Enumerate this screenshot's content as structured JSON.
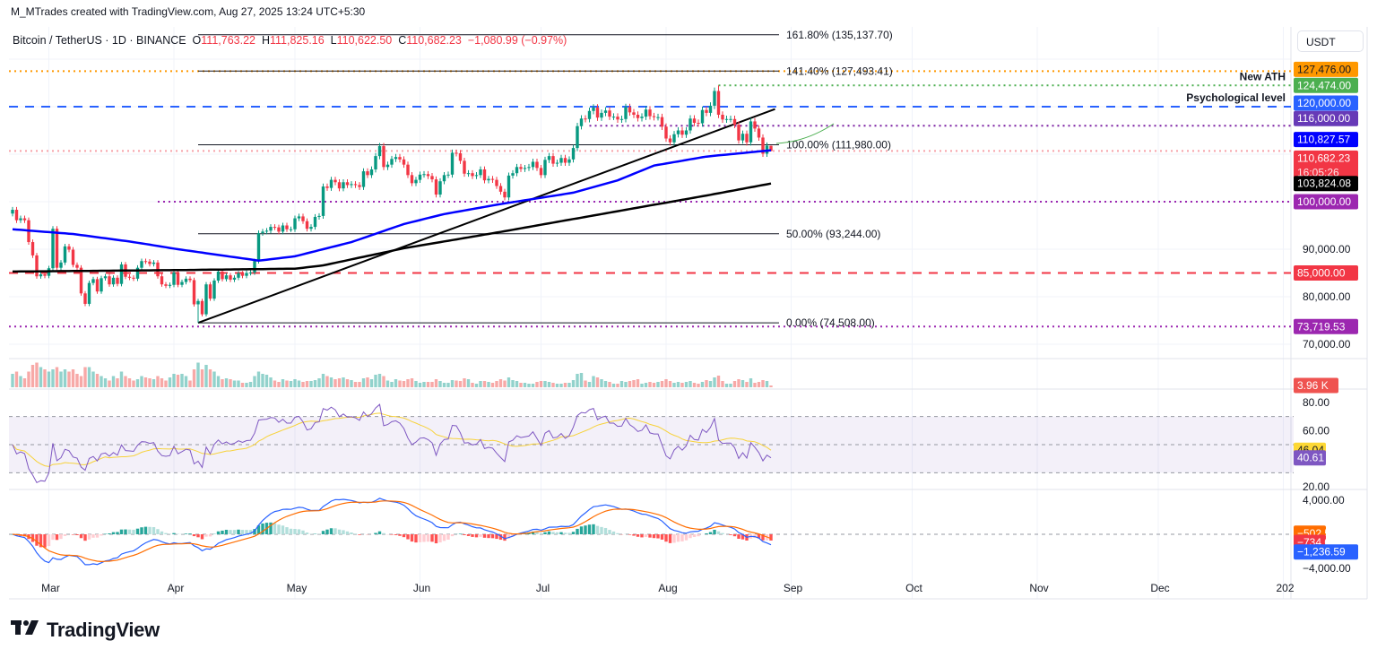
{
  "header": {
    "attribution": "M_MTrades created with TradingView.com, Aug 27, 2025 13:24 UTC+5:30",
    "symbol": "Bitcoin / TetherUS · 1D · BINANCE",
    "o_label": "O",
    "o": "111,763.22",
    "h_label": "H",
    "h": "111,825.16",
    "l_label": "L",
    "l": "110,622.50",
    "c_label": "C",
    "c": "110,682.23",
    "change": "−1,080.99 (−0.97%)"
  },
  "currency_button": "USDT",
  "branding": {
    "logo_text": "TradingView",
    "logo_mark": "17"
  },
  "colors": {
    "up": "#089981",
    "down": "#f23645",
    "ma100": "#0000ff",
    "ma200": "#000000",
    "rsi": "#7e57c2",
    "rsi_ma": "#f7d23a",
    "macd": "#2962ff",
    "signal": "#ff6d00"
  },
  "chart_data": {
    "type": "candlestick",
    "symbol": "BTCUSDT",
    "timeframe": "1D",
    "start_date": "2025-02-20",
    "first_open": 97500,
    "closes_k": [
      98.3,
      96.1,
      96.5,
      96.1,
      91.5,
      88.7,
      84.3,
      84.7,
      84.4,
      86.0,
      94.3,
      86.1,
      87.2,
      90.6,
      89.9,
      86.7,
      86.1,
      80.7,
      78.5,
      82.9,
      83.7,
      81.1,
      83.9,
      84.3,
      82.6,
      84.0,
      82.7,
      86.8,
      84.2,
      84.0,
      83.8,
      86.1,
      87.5,
      87.4,
      86.9,
      87.2,
      84.3,
      82.6,
      82.3,
      82.5,
      85.1,
      82.5,
      83.1,
      83.8,
      83.5,
      78.4,
      79.1,
      76.3,
      82.6,
      79.6,
      83.4,
      85.3,
      83.7,
      84.5,
      83.6,
      84.0,
      84.9,
      84.4,
      85.0,
      85.1,
      87.5,
      93.4,
      93.7,
      93.9,
      94.7,
      94.6,
      93.7,
      95.0,
      94.2,
      94.2,
      96.5,
      96.9,
      95.9,
      94.3,
      94.7,
      96.8,
      97.0,
      103.2,
      102.9,
      104.6,
      104.1,
      102.8,
      104.1,
      103.5,
      103.7,
      103.5,
      103.1,
      106.4,
      105.6,
      106.8,
      109.6,
      111.7,
      107.3,
      107.8,
      109.0,
      109.4,
      108.9,
      107.8,
      105.6,
      103.9,
      104.6,
      105.7,
      105.8,
      105.4,
      104.7,
      101.5,
      104.3,
      105.6,
      105.7,
      110.3,
      110.2,
      108.6,
      105.9,
      106.0,
      105.4,
      105.6,
      106.8,
      104.5,
      104.8,
      104.6,
      103.3,
      102.1,
      100.9,
      105.5,
      106.0,
      107.3,
      106.9,
      107.1,
      107.3,
      108.4,
      107.1,
      105.6,
      108.8,
      109.6,
      108.0,
      108.2,
      109.2,
      108.2,
      108.9,
      111.3,
      115.9,
      117.5,
      117.4,
      119.1,
      119.8,
      117.7,
      118.7,
      119.2,
      117.9,
      117.9,
      117.3,
      117.4,
      119.9,
      118.8,
      118.3,
      117.6,
      117.9,
      119.4,
      118.0,
      117.8,
      117.8,
      115.8,
      113.3,
      112.5,
      114.2,
      115.0,
      114.1,
      115.0,
      117.5,
      116.6,
      116.5,
      119.3,
      118.7,
      120.2,
      123.3,
      118.3,
      117.3,
      117.4,
      117.4,
      116.2,
      112.9,
      114.3,
      112.5,
      116.9,
      115.4,
      113.5,
      110.1,
      111.8,
      110.68223
    ],
    "last_candle": {
      "open": 111763.22,
      "high": 111825.16,
      "low": 110622.5,
      "close": 110682.23
    },
    "extremes": [
      {
        "date": "2025-04-07",
        "low": 74508
      },
      {
        "date": "2025-08-14",
        "high": 124474
      }
    ],
    "volume_k": [
      30,
      35,
      25,
      20,
      35,
      50,
      55,
      45,
      40,
      35,
      40,
      45,
      35,
      40,
      35,
      40,
      30,
      25,
      45,
      45,
      35,
      30,
      25,
      20,
      15,
      25,
      20,
      35,
      25,
      20,
      15,
      18,
      25,
      22,
      20,
      18,
      25,
      20,
      15,
      22,
      30,
      28,
      30,
      25,
      15,
      40,
      55,
      40,
      50,
      40,
      35,
      25,
      18,
      20,
      18,
      15,
      15,
      10,
      10,
      12,
      25,
      35,
      30,
      28,
      22,
      15,
      12,
      18,
      15,
      14,
      18,
      15,
      12,
      14,
      14,
      16,
      20,
      30,
      25,
      22,
      18,
      20,
      22,
      18,
      16,
      12,
      12,
      20,
      22,
      18,
      28,
      30,
      25,
      15,
      12,
      18,
      15,
      14,
      18,
      20,
      14,
      10,
      12,
      12,
      12,
      18,
      14,
      10,
      10,
      16,
      15,
      14,
      20,
      18,
      10,
      8,
      14,
      14,
      12,
      10,
      14,
      18,
      15,
      22,
      16,
      14,
      10,
      10,
      8,
      8,
      12,
      14,
      14,
      12,
      10,
      8,
      8,
      10,
      10,
      16,
      30,
      32,
      15,
      12,
      25,
      22,
      18,
      14,
      12,
      8,
      8,
      14,
      12,
      14,
      16,
      18,
      8,
      10,
      12,
      10,
      12,
      14,
      18,
      14,
      10,
      12,
      10,
      12,
      14,
      10,
      8,
      12,
      16,
      14,
      22,
      26,
      14,
      8,
      8,
      14,
      18,
      16,
      12,
      20,
      10,
      12,
      16,
      14,
      3.96
    ],
    "ma_blue_anchors": [
      [
        "2025-02-20",
        94200
      ],
      [
        "2025-03-07",
        93200
      ],
      [
        "2025-03-22",
        91500
      ],
      [
        "2025-04-02",
        90000
      ],
      [
        "2025-04-22",
        87600
      ],
      [
        "2025-05-01",
        88500
      ],
      [
        "2025-05-15",
        91500
      ],
      [
        "2025-05-28",
        95300
      ],
      [
        "2025-06-07",
        97400
      ],
      [
        "2025-06-21",
        99500
      ],
      [
        "2025-07-09",
        101900
      ],
      [
        "2025-07-20",
        104500
      ],
      [
        "2025-07-29",
        107600
      ],
      [
        "2025-08-11",
        109500
      ],
      [
        "2025-08-27",
        110827.57
      ]
    ],
    "ma_black_anchors": [
      [
        "2025-02-20",
        85300
      ],
      [
        "2025-04-01",
        85600
      ],
      [
        "2025-05-01",
        85900
      ],
      [
        "2025-05-08",
        86600
      ],
      [
        "2025-05-28",
        90200
      ],
      [
        "2025-06-20",
        93500
      ],
      [
        "2025-07-16",
        97400
      ],
      [
        "2025-08-11",
        101300
      ],
      [
        "2025-08-27",
        103824.08
      ]
    ],
    "trendline": [
      [
        "2025-04-07",
        74508
      ],
      [
        "2025-08-28",
        119500
      ]
    ],
    "fib": {
      "from": "2025-04-07",
      "to": "2025-08-29",
      "levels": [
        {
          "value": 135137.7,
          "label": "161.80% (135,137.70)"
        },
        {
          "value": 127493.41,
          "label": "141.40% (127,493.41)"
        },
        {
          "value": 111980.0,
          "label": "100.00% (111,980.00)"
        },
        {
          "value": 93244.0,
          "label": "50.00% (93,244.00)"
        },
        {
          "value": 74508.0,
          "label": "0.00% (74,508.00)"
        }
      ]
    },
    "levels": [
      {
        "value": 127476,
        "color": "#ff9800",
        "style": "dotted",
        "from": null
      },
      {
        "value": 124474,
        "color": "#4caf50",
        "style": "dotted",
        "from": "2025-08-14",
        "note": "New ATH"
      },
      {
        "value": 120000,
        "color": "#2962ff",
        "style": "dashed",
        "from": null,
        "note": "Psychological level"
      },
      {
        "value": 116000,
        "color": "#7b1fa2",
        "style": "dotted",
        "from": "2025-07-13"
      },
      {
        "value": 110682.23,
        "color": "#f7a1a8",
        "style": "dotted",
        "from": null
      },
      {
        "value": 100000,
        "color": "#9c27b0",
        "style": "dotted",
        "from": "2025-03-28"
      },
      {
        "value": 85000,
        "color": "#f23645",
        "style": "dashed",
        "from": null
      },
      {
        "value": 73719.53,
        "color": "#9c27b0",
        "style": "dotted",
        "from": null
      }
    ],
    "price_ticks": [
      "90,000.00",
      "80,000.00",
      "70,000.00"
    ],
    "price_tick_values": [
      90000,
      80000,
      70000
    ],
    "rsi": {
      "period": 14,
      "ma_period": 14,
      "upper": 70,
      "middle": 50,
      "lower": 30,
      "ticks": [
        "80.00",
        "60.00",
        "20.00"
      ],
      "tick_values": [
        80,
        60,
        20
      ]
    },
    "macd": {
      "fast": 12,
      "slow": 26,
      "signal": 9,
      "ticks": [
        "4,000.00",
        "−4,000.00"
      ],
      "tick_values": [
        4000,
        -4000
      ]
    },
    "x_ticks": [
      [
        "Mar",
        "2025-03-01"
      ],
      [
        "Apr",
        "2025-04-01"
      ],
      [
        "May",
        "2025-05-01"
      ],
      [
        "Jun",
        "2025-06-01"
      ],
      [
        "Jul",
        "2025-07-01"
      ],
      [
        "Aug",
        "2025-08-01"
      ],
      [
        "Sep",
        "2025-09-01"
      ],
      [
        "Oct",
        "2025-10-01"
      ],
      [
        "Nov",
        "2025-11-01"
      ],
      [
        "Dec",
        "2025-12-01"
      ],
      [
        "202",
        "2026-01-01"
      ]
    ]
  },
  "tags": [
    {
      "text": "127,476.00",
      "sub": "",
      "bg": "#ff9800",
      "fg": "#131722",
      "pane": "price",
      "value": 127476,
      "offset": -2
    },
    {
      "text": "124,474.00",
      "sub": "",
      "bg": "#4caf50",
      "fg": "#ffffff",
      "pane": "price",
      "value": 124474,
      "offset": 0
    },
    {
      "text": "120,000.00",
      "sub": "",
      "bg": "#2962ff",
      "fg": "#ffffff",
      "pane": "price",
      "value": 120000,
      "offset": -4
    },
    {
      "text": "116,000.00",
      "sub": "",
      "bg": "#673ab7",
      "fg": "#ffffff",
      "pane": "price",
      "value": 116000,
      "offset": -8
    },
    {
      "text": "110,827.57",
      "sub": "",
      "bg": "#0000ff",
      "fg": "#ffffff",
      "pane": "price",
      "value": 110827.57,
      "offset": -12
    },
    {
      "text": "110,682.23",
      "sub": "16:05:26",
      "bg": "#f23645",
      "fg": "#ffffff",
      "pane": "price",
      "value": 110682.23,
      "offset": 8
    },
    {
      "text": "103,824.08",
      "sub": "",
      "bg": "#000000",
      "fg": "#ffffff",
      "pane": "price",
      "value": 103824.08,
      "offset": 0
    },
    {
      "text": "100,000.00",
      "sub": "",
      "bg": "#9c27b0",
      "fg": "#ffffff",
      "pane": "price",
      "value": 100000,
      "offset": 0
    },
    {
      "text": "85,000.00",
      "sub": "",
      "bg": "#f23645",
      "fg": "#ffffff",
      "pane": "price",
      "value": 85000,
      "offset": 0
    },
    {
      "text": "73,719.53",
      "sub": "",
      "bg": "#9c27b0",
      "fg": "#ffffff",
      "pane": "price",
      "value": 73719.53,
      "offset": 0
    },
    {
      "text": "3.96 K",
      "sub": "",
      "bg": "#ef5350",
      "fg": "#ffffff",
      "pane": "volume",
      "value": 3.96,
      "offset": 0
    },
    {
      "text": "46.04",
      "sub": "",
      "bg": "#fdd835",
      "fg": "#131722",
      "pane": "rsi",
      "value": 46.04,
      "offset": 0
    },
    {
      "text": "40.61",
      "sub": "",
      "bg": "#7e57c2",
      "fg": "#ffffff",
      "pane": "rsi",
      "value": 40.61,
      "offset": 0
    },
    {
      "text": "−502.53",
      "sub": "",
      "bg": "#ff6d00",
      "fg": "#ffffff",
      "pane": "macd",
      "value": -502.53,
      "offset": -6
    },
    {
      "text": "−734.06",
      "sub": "",
      "bg": "#f23645",
      "fg": "#ffffff",
      "pane": "macd",
      "value": -734.06,
      "offset": 2
    },
    {
      "text": "−1,236.59",
      "sub": "",
      "bg": "#2962ff",
      "fg": "#ffffff",
      "pane": "macd",
      "value": -1236.59,
      "offset": 8
    }
  ]
}
